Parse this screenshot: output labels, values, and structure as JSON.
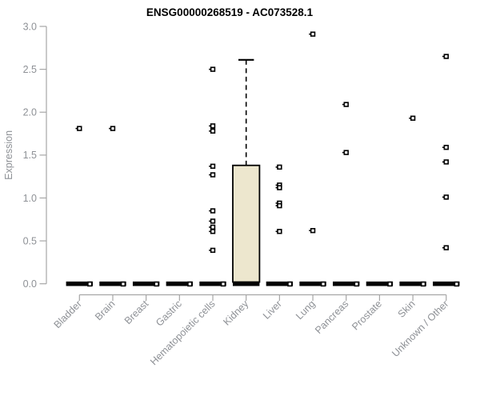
{
  "chart_data": {
    "type": "boxplot",
    "title": "ENSG00000268519 - AC073528.1",
    "ylabel": "Expression",
    "ylim": [
      0,
      3
    ],
    "yticks": [
      "0.0",
      "0.5",
      "1.0",
      "1.5",
      "2.0",
      "2.5",
      "3.0"
    ],
    "ytick_values": [
      0,
      0.5,
      1,
      1.5,
      2,
      2.5,
      3
    ],
    "grid": false,
    "legend": "none",
    "marker_style": "small open square",
    "colors": {
      "box_fill": "#EDE7CE",
      "box_border": "#000000",
      "zero_bar": "#000000",
      "axis_line": "#A6A6A6",
      "label_text": "#8E9196",
      "title_text": "#000000",
      "point_fill": "#FFFFFF",
      "point_border": "#000000"
    },
    "categories": [
      "Bladder",
      "Brain",
      "Breast",
      "Gastric",
      "Hematopoietic cells",
      "Kidney",
      "Liver",
      "Lung",
      "Pancreas",
      "Prostate",
      "Skin",
      "Unknown / Other"
    ],
    "series": [
      {
        "category": "Bladder",
        "zero_bar": true,
        "zero_point": true,
        "points": [
          1.81
        ]
      },
      {
        "category": "Brain",
        "zero_bar": true,
        "zero_point": true,
        "points": [
          1.81
        ]
      },
      {
        "category": "Breast",
        "zero_bar": true,
        "zero_point": true,
        "points": []
      },
      {
        "category": "Gastric",
        "zero_bar": true,
        "zero_point": true,
        "points": []
      },
      {
        "category": "Hematopoietic cells",
        "zero_bar": true,
        "zero_point": true,
        "points": [
          2.5,
          1.84,
          1.78,
          1.37,
          1.27,
          0.85,
          0.73,
          0.66,
          0.61,
          0.39
        ]
      },
      {
        "category": "Kidney",
        "zero_bar": false,
        "zero_point": false,
        "points": [],
        "box": {
          "q1": 0.02,
          "median": 0.02,
          "q3": 1.38,
          "whisker_high": 2.61
        }
      },
      {
        "category": "Liver",
        "zero_bar": true,
        "zero_point": true,
        "points": [
          1.36,
          1.15,
          1.12,
          0.94,
          0.91,
          0.61
        ]
      },
      {
        "category": "Lung",
        "zero_bar": true,
        "zero_point": true,
        "points": [
          2.91,
          0.62
        ]
      },
      {
        "category": "Pancreas",
        "zero_bar": true,
        "zero_point": true,
        "points": [
          2.09,
          1.53
        ]
      },
      {
        "category": "Prostate",
        "zero_bar": true,
        "zero_point": true,
        "points": []
      },
      {
        "category": "Skin",
        "zero_bar": true,
        "zero_point": true,
        "points": [
          1.93
        ]
      },
      {
        "category": "Unknown / Other",
        "zero_bar": true,
        "zero_point": true,
        "points": [
          2.65,
          1.59,
          1.42,
          1.01,
          0.42
        ]
      }
    ]
  }
}
